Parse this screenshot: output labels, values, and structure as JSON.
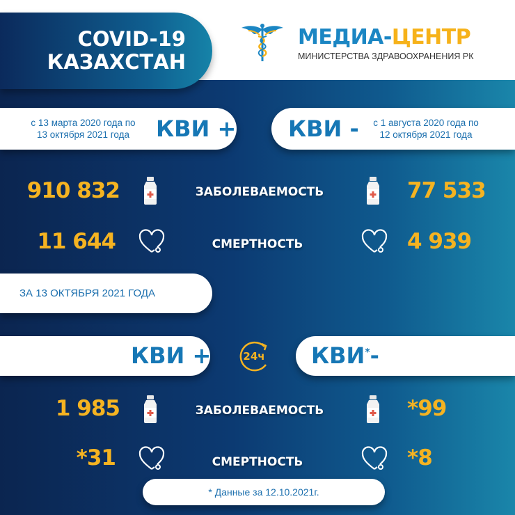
{
  "header": {
    "title_line1": "COVID-19",
    "title_line2": "КАЗАХСТАН",
    "brand_part1": "МЕДИА-",
    "brand_part2": "ЦЕНТР",
    "brand_subtitle": "МИНИСТЕРСТВА ЗДРАВООХРАНЕНИЯ РК",
    "logo_icon": "caduceus-icon"
  },
  "cumulative": {
    "positive": {
      "label": "КВИ +",
      "period_line1": "с 13 марта 2020 года по",
      "period_line2": "13 октября 2021 года",
      "cases": "910 832",
      "deaths": "11 644"
    },
    "negative": {
      "label": "КВИ -",
      "period_line1": "с 1 августа 2020 года по",
      "period_line2": "12 октября 2021 года",
      "cases": "77 533",
      "deaths": "4 939"
    }
  },
  "labels": {
    "cases": "ЗАБОЛЕВАЕМОСТЬ",
    "deaths": "СМЕРТНОСТЬ"
  },
  "daily": {
    "date_label": "ЗА 13 ОКТЯБРЯ 2021 ГОДА",
    "icon_text": "24ч",
    "positive": {
      "label": "КВИ +",
      "cases": "1 985",
      "deaths": "*31"
    },
    "negative": {
      "label": "КВИ",
      "label_star": "*",
      "label_suffix": "-",
      "cases": "*99",
      "deaths": "*8"
    }
  },
  "footnote": "* Данные за 12.10.2021г.",
  "colors": {
    "accent_yellow": "#f5b321",
    "brand_blue": "#1677b5",
    "bg_dark": "#0b2550",
    "bg_teal": "#1a86aa"
  }
}
